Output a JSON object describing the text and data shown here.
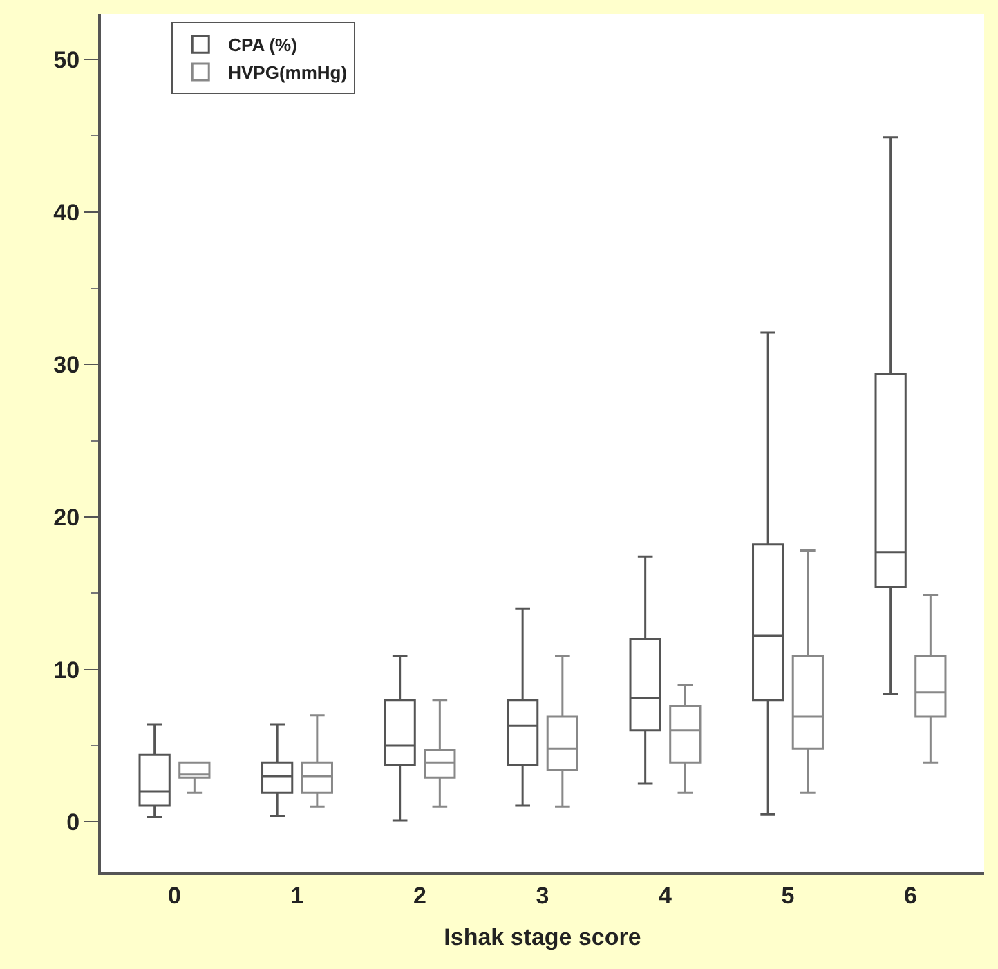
{
  "chart_data": {
    "type": "box",
    "xlabel": "Ishak stage score",
    "categories": [
      "0",
      "1",
      "2",
      "3",
      "4",
      "5",
      "6"
    ],
    "ylim": [
      -3.3,
      53
    ],
    "yticks": [
      0,
      10,
      20,
      30,
      40,
      50
    ],
    "legend": "top left",
    "series": [
      {
        "name": "CPA (%)",
        "color": "#555555",
        "boxes": [
          {
            "low": 0.3,
            "q1": 1.1,
            "median": 2.0,
            "q3": 4.4,
            "high": 6.4
          },
          {
            "low": 0.4,
            "q1": 1.9,
            "median": 3.0,
            "q3": 3.9,
            "high": 6.4
          },
          {
            "low": 0.1,
            "q1": 3.7,
            "median": 5.0,
            "q3": 8.0,
            "high": 10.9
          },
          {
            "low": 1.1,
            "q1": 3.7,
            "median": 6.3,
            "q3": 8.0,
            "high": 14.0
          },
          {
            "low": 2.5,
            "q1": 6.0,
            "median": 8.1,
            "q3": 12.0,
            "high": 17.4
          },
          {
            "low": 0.5,
            "q1": 8.0,
            "median": 12.2,
            "q3": 18.2,
            "high": 32.1
          },
          {
            "low": 8.4,
            "q1": 15.4,
            "median": 17.7,
            "q3": 29.4,
            "high": 44.9
          }
        ]
      },
      {
        "name": "HVPG(mmHg)",
        "color": "#888888",
        "boxes": [
          {
            "low": 1.9,
            "q1": 2.9,
            "median": 3.1,
            "q3": 3.9,
            "high": 3.9
          },
          {
            "low": 1.0,
            "q1": 1.9,
            "median": 3.0,
            "q3": 3.9,
            "high": 7.0
          },
          {
            "low": 1.0,
            "q1": 2.9,
            "median": 3.9,
            "q3": 4.7,
            "high": 8.0
          },
          {
            "low": 1.0,
            "q1": 3.4,
            "median": 4.8,
            "q3": 6.9,
            "high": 10.9
          },
          {
            "low": 1.9,
            "q1": 3.9,
            "median": 6.0,
            "q3": 7.6,
            "high": 9.0
          },
          {
            "low": 1.9,
            "q1": 4.8,
            "median": 6.9,
            "q3": 10.9,
            "high": 17.8
          },
          {
            "low": 3.9,
            "q1": 6.9,
            "median": 8.5,
            "q3": 10.9,
            "high": 14.9
          }
        ]
      }
    ]
  }
}
